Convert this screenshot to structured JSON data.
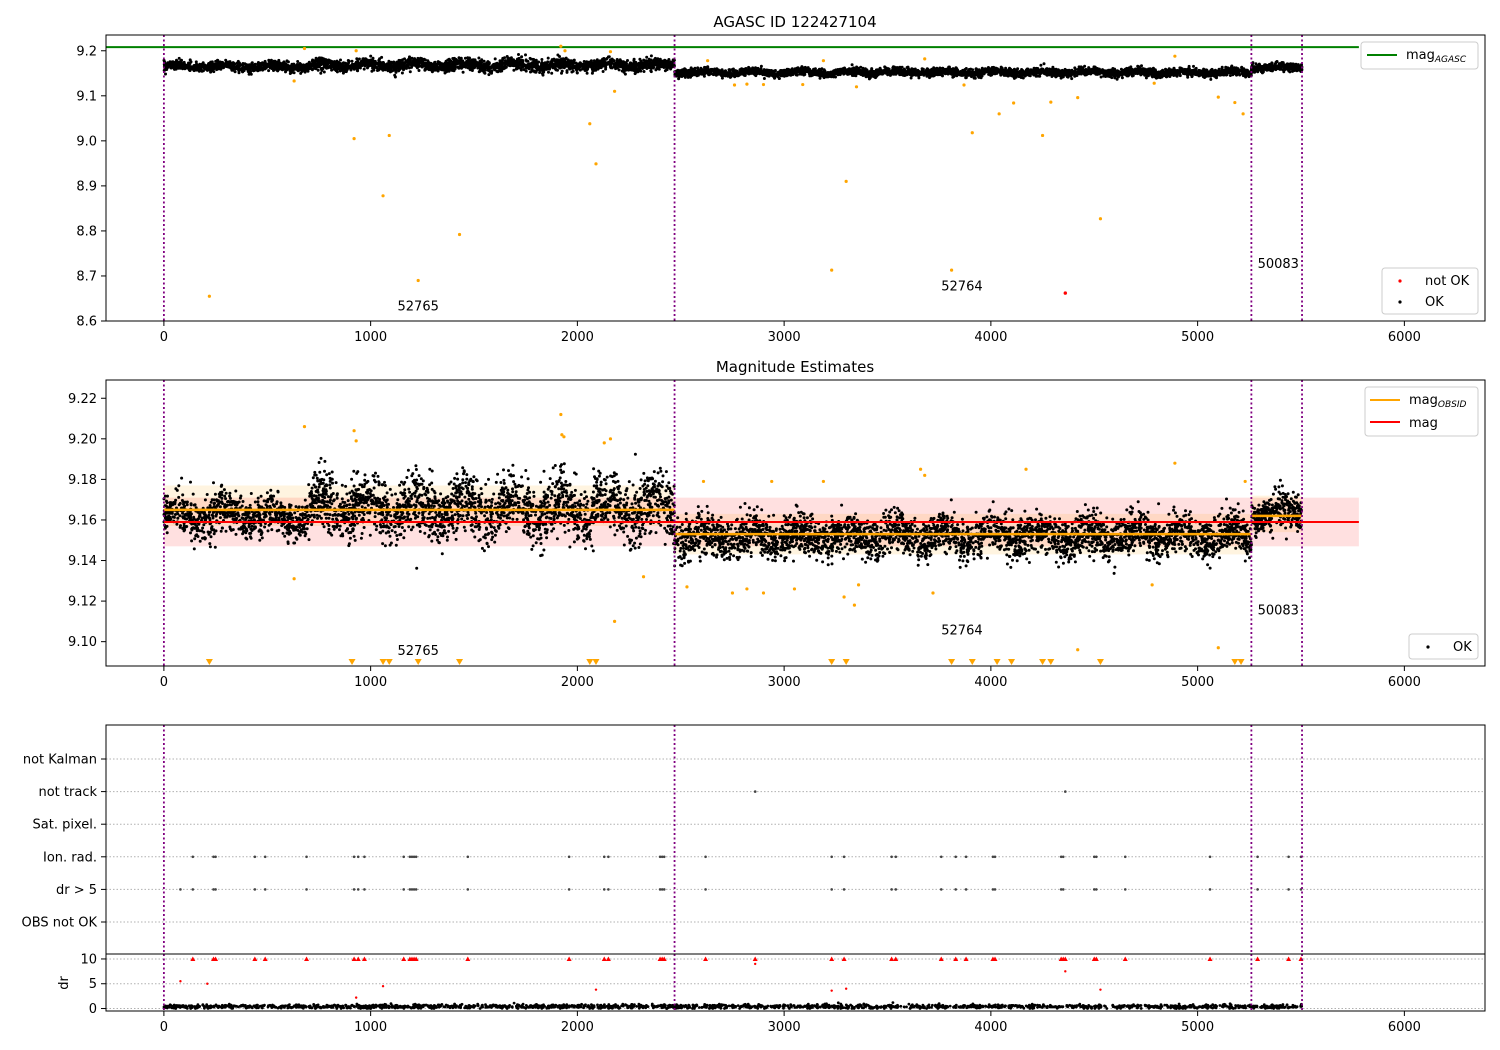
{
  "chart_data": [
    {
      "type": "scatter",
      "title": "AGASC ID 122427104",
      "xlim": [
        -280,
        6390
      ],
      "ylim": [
        8.6,
        9.235
      ],
      "x_ticks": [
        0,
        1000,
        2000,
        3000,
        4000,
        5000,
        6000
      ],
      "y_ticks": [
        8.6,
        8.7,
        8.8,
        8.9,
        9.0,
        9.1,
        9.2
      ],
      "y_tick_labels": [
        "8.6",
        "8.7",
        "8.8",
        "8.9",
        "9.0",
        "9.1",
        "9.2"
      ],
      "mag_agasc": 9.208,
      "mag_agasc_line_xrange": [
        -280,
        5780
      ],
      "obsid_boundaries": [
        0,
        2470,
        5260,
        5505
      ],
      "obsid_labels": [
        {
          "text": "52765",
          "x": 1130,
          "y": 8.623
        },
        {
          "text": "52764",
          "x": 3760,
          "y": 8.668
        },
        {
          "text": "50083",
          "x": 5290,
          "y": 8.718
        }
      ],
      "legend_upper": {
        "entries": [
          {
            "label": "mag",
            "sub": "AGASC",
            "color": "#008000"
          }
        ],
        "position": "upper-right"
      },
      "legend_lower": {
        "entries": [
          {
            "label": "not OK",
            "color": "#ff0000"
          },
          {
            "label": "OK",
            "color": "#000000"
          }
        ],
        "position": "lower-right"
      },
      "ok_bands": [
        {
          "x": [
            0,
            700
          ],
          "mean": 9.165,
          "spread": 0.009
        },
        {
          "x": [
            700,
            2470
          ],
          "mean": 9.168,
          "spread": 0.012
        },
        {
          "x": [
            2470,
            5260
          ],
          "mean": 9.152,
          "spread": 0.008
        },
        {
          "x": [
            5260,
            5505
          ],
          "mean": 9.163,
          "spread": 0.008
        }
      ],
      "outliers": {
        "color": "#ffa500",
        "x": [
          220,
          630,
          680,
          920,
          930,
          1090,
          1060,
          1230,
          1430,
          1920,
          1940,
          2060,
          2090,
          2160,
          2180,
          2630,
          2760,
          2820,
          3230,
          3300,
          3350,
          3810,
          3870,
          3910,
          4040,
          4110,
          4250,
          4290,
          4420,
          4530,
          4790,
          4890,
          5100,
          5180,
          5220,
          3090,
          3190,
          2900,
          3680
        ],
        "y": [
          8.655,
          9.133,
          9.205,
          9.005,
          9.2,
          9.012,
          8.878,
          8.69,
          8.792,
          9.21,
          9.2,
          9.038,
          8.949,
          9.198,
          9.11,
          9.178,
          9.124,
          9.126,
          8.713,
          8.91,
          9.12,
          8.713,
          9.124,
          9.018,
          9.06,
          9.084,
          9.012,
          9.086,
          9.096,
          8.827,
          9.128,
          9.188,
          9.097,
          9.085,
          9.06,
          9.125,
          9.178,
          9.125,
          9.182
        ]
      },
      "not_ok": {
        "color": "#ff0000",
        "x": [
          4360
        ],
        "y": [
          8.662
        ]
      }
    },
    {
      "type": "scatter",
      "title": "Magnitude Estimates",
      "xlim": [
        -280,
        6390
      ],
      "ylim": [
        9.088,
        9.229
      ],
      "x_ticks": [
        0,
        1000,
        2000,
        3000,
        4000,
        5000,
        6000
      ],
      "y_ticks": [
        9.1,
        9.12,
        9.14,
        9.16,
        9.18,
        9.2,
        9.22
      ],
      "y_tick_labels": [
        "9.10",
        "9.12",
        "9.14",
        "9.16",
        "9.18",
        "9.20",
        "9.22"
      ],
      "mag": 9.159,
      "mag_band": [
        9.147,
        9.171
      ],
      "mag_line_xrange": [
        0,
        5780
      ],
      "obsid_boundaries": [
        0,
        2470,
        5260,
        5505
      ],
      "obsid_segments": [
        {
          "x": [
            0,
            2470
          ],
          "mag": 9.165,
          "band": [
            9.157,
            9.177
          ]
        },
        {
          "x": [
            2470,
            5260
          ],
          "mag": 9.153,
          "band": [
            9.143,
            9.163
          ]
        },
        {
          "x": [
            5260,
            5505
          ],
          "mag": 9.162,
          "band": [
            9.154,
            9.172
          ]
        }
      ],
      "obsid_labels": [
        {
          "text": "52765",
          "x": 1130,
          "y": 9.0935
        },
        {
          "text": "52764",
          "x": 3760,
          "y": 9.1035
        },
        {
          "text": "50083",
          "x": 5290,
          "y": 9.1135
        }
      ],
      "legend_upper": {
        "entries": [
          {
            "label": "mag",
            "sub": "OBSID",
            "color": "#ffa500"
          },
          {
            "label": "mag",
            "sub": "",
            "color": "#ff0000"
          }
        ],
        "position": "upper-right"
      },
      "legend_lower": {
        "entries": [
          {
            "label": "OK",
            "color": "#000000"
          }
        ],
        "position": "lower-right"
      },
      "ok_bands": [
        {
          "x": [
            0,
            700
          ],
          "mean": 9.162,
          "spread": 0.009
        },
        {
          "x": [
            700,
            2470
          ],
          "mean": 9.166,
          "spread": 0.013
        },
        {
          "x": [
            2470,
            5260
          ],
          "mean": 9.152,
          "spread": 0.009
        },
        {
          "x": [
            5260,
            5505
          ],
          "mean": 9.163,
          "spread": 0.008
        }
      ],
      "outliers": {
        "color": "#ffa500",
        "x": [
          630,
          680,
          920,
          930,
          1920,
          1925,
          1935,
          2130,
          2160,
          2180,
          2320,
          2530,
          2610,
          2750,
          2820,
          2900,
          2940,
          3050,
          3190,
          3290,
          3340,
          3360,
          3660,
          3680,
          3720,
          4170,
          4420,
          4780,
          4890,
          5100,
          5230
        ],
        "y": [
          9.131,
          9.206,
          9.204,
          9.199,
          9.212,
          9.202,
          9.201,
          9.198,
          9.2,
          9.11,
          9.132,
          9.127,
          9.179,
          9.124,
          9.126,
          9.124,
          9.179,
          9.126,
          9.179,
          9.122,
          9.118,
          9.128,
          9.185,
          9.182,
          9.124,
          9.185,
          9.096,
          9.128,
          9.188,
          9.097,
          9.179
        ]
      },
      "clipped_markers": {
        "color": "#ffa500",
        "y": 9.09,
        "x": [
          220,
          910,
          1060,
          1090,
          1230,
          1430,
          2060,
          2090,
          3230,
          3300,
          3810,
          3910,
          4030,
          4100,
          4250,
          4290,
          4530,
          5180,
          5210
        ]
      }
    },
    {
      "type": "scatter",
      "title": "",
      "xlim": [
        -280,
        6390
      ],
      "categories": [
        "not Kalman",
        "not track",
        "Sat. pixel.",
        "Ion. rad.",
        "dr > 5",
        "OBS not OK"
      ],
      "obsid_boundaries": [
        0,
        2470,
        5260,
        5505
      ],
      "flag_points": {
        "not track": [
          2860,
          4360
        ],
        "Ion. rad.": [
          140,
          240,
          250,
          440,
          490,
          690,
          920,
          940,
          970,
          1160,
          1190,
          1200,
          1210,
          1220,
          1470,
          1960,
          2130,
          2150,
          2400,
          2410,
          2420,
          2620,
          3230,
          3290,
          3520,
          3540,
          3760,
          3830,
          3880,
          4010,
          4020,
          4340,
          4350,
          4500,
          4510,
          4650,
          5060,
          5290,
          5440,
          5500
        ],
        "dr > 5": [
          80,
          140,
          240,
          250,
          440,
          490,
          690,
          920,
          940,
          970,
          1160,
          1190,
          1200,
          1210,
          1220,
          1470,
          1960,
          2130,
          2150,
          2400,
          2410,
          2420,
          2620,
          3230,
          3290,
          3520,
          3540,
          3760,
          3830,
          3880,
          4010,
          4020,
          4340,
          4350,
          4500,
          4510,
          4650,
          5060,
          5290,
          5440,
          5500
        ]
      }
    },
    {
      "type": "scatter",
      "title": "",
      "ylabel": "dr",
      "xlim": [
        -280,
        6390
      ],
      "ylim": [
        -0.5,
        11
      ],
      "x_ticks": [
        0,
        1000,
        2000,
        3000,
        4000,
        5000,
        6000
      ],
      "y_ticks": [
        0,
        5,
        10
      ],
      "y_tick_labels": [
        "0",
        "5",
        "10"
      ],
      "obsid_boundaries": [
        0,
        2470,
        5260,
        5505
      ],
      "clip_value": 10,
      "clipped_red_markers": [
        140,
        240,
        250,
        440,
        490,
        690,
        920,
        940,
        970,
        1160,
        1190,
        1200,
        1210,
        1220,
        1470,
        1960,
        2130,
        2150,
        2400,
        2410,
        2420,
        2620,
        2860,
        3230,
        3290,
        3520,
        3540,
        3760,
        3830,
        3880,
        4010,
        4020,
        4340,
        4350,
        4360,
        4500,
        4510,
        4650,
        5060,
        5290,
        5440,
        5500
      ],
      "red_points": {
        "x": [
          80,
          210,
          1060,
          2090,
          2860,
          3230,
          3300,
          4360,
          4530,
          930
        ],
        "y": [
          5.5,
          5,
          4.5,
          3.8,
          9,
          3.6,
          4,
          7.5,
          3.8,
          2.2
        ]
      },
      "baseline": {
        "mean": 0.4,
        "spread": 0.35,
        "x": [
          0,
          5505
        ]
      }
    }
  ]
}
